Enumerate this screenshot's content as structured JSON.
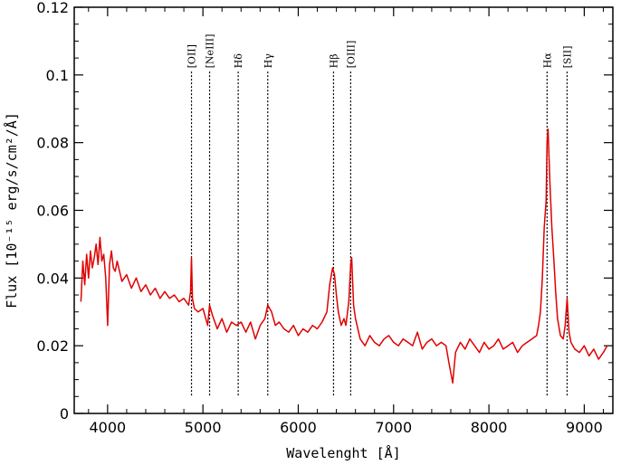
{
  "chart_data": {
    "type": "line",
    "title": "",
    "xlabel": "Wavelenght [Å]",
    "ylabel": "Flux [10⁻¹⁵ erg/s/cm²/Å]",
    "xlim": [
      3650,
      9300
    ],
    "ylim": [
      0,
      0.12
    ],
    "x_ticks": [
      "4000",
      "5000",
      "6000",
      "7000",
      "8000",
      "9000"
    ],
    "y_ticks": [
      "0",
      "0.02",
      "0.04",
      "0.06",
      "0.08",
      "0.1",
      "0.12"
    ],
    "grid": false,
    "line_color": "#e00000",
    "emission_lines": [
      {
        "label": "[OII]",
        "wavelength": 4880
      },
      {
        "label": "[NeIII]",
        "wavelength": 5070
      },
      {
        "label": "Hδ",
        "wavelength": 5370
      },
      {
        "label": "Hγ",
        "wavelength": 5680
      },
      {
        "label": "Hβ",
        "wavelength": 6370
      },
      {
        "label": "[OIII]",
        "wavelength": 6550
      },
      {
        "label": "Hα",
        "wavelength": 8610
      },
      {
        "label": "[SII]",
        "wavelength": 8820
      }
    ],
    "series": [
      {
        "x": [
          3720,
          3740,
          3760,
          3780,
          3800,
          3820,
          3840,
          3860,
          3880,
          3900,
          3920,
          3940,
          3960,
          3980,
          4000,
          4020,
          4040,
          4060,
          4080,
          4100,
          4150,
          4200,
          4250,
          4300,
          4350,
          4400,
          4450,
          4500,
          4550,
          4600,
          4650,
          4700,
          4750,
          4800,
          4850,
          4870,
          4880,
          4890,
          4910,
          4950,
          5000,
          5050,
          5070,
          5100,
          5150,
          5200,
          5250,
          5300,
          5350,
          5400,
          5450,
          5500,
          5550,
          5600,
          5650,
          5680,
          5720,
          5760,
          5800,
          5850,
          5900,
          5950,
          6000,
          6050,
          6100,
          6150,
          6200,
          6250,
          6300,
          6330,
          6360,
          6380,
          6400,
          6420,
          6450,
          6480,
          6500,
          6530,
          6550,
          6560,
          6580,
          6600,
          6650,
          6700,
          6750,
          6800,
          6850,
          6900,
          6950,
          7000,
          7050,
          7100,
          7150,
          7200,
          7250,
          7300,
          7350,
          7400,
          7450,
          7500,
          7550,
          7580,
          7600,
          7620,
          7650,
          7700,
          7750,
          7800,
          7850,
          7900,
          7950,
          8000,
          8050,
          8100,
          8150,
          8200,
          8250,
          8300,
          8350,
          8400,
          8450,
          8500,
          8520,
          8540,
          8560,
          8580,
          8600,
          8610,
          8620,
          8640,
          8660,
          8680,
          8700,
          8720,
          8750,
          8780,
          8800,
          8820,
          8840,
          8860,
          8900,
          8950,
          9000,
          9050,
          9100,
          9150,
          9200,
          9240
        ],
        "y": [
          0.033,
          0.045,
          0.038,
          0.047,
          0.04,
          0.048,
          0.043,
          0.046,
          0.05,
          0.044,
          0.052,
          0.045,
          0.047,
          0.04,
          0.026,
          0.044,
          0.048,
          0.043,
          0.042,
          0.045,
          0.039,
          0.041,
          0.037,
          0.04,
          0.036,
          0.038,
          0.035,
          0.037,
          0.034,
          0.036,
          0.034,
          0.035,
          0.033,
          0.034,
          0.032,
          0.036,
          0.046,
          0.034,
          0.031,
          0.03,
          0.031,
          0.026,
          0.032,
          0.029,
          0.025,
          0.028,
          0.024,
          0.027,
          0.026,
          0.027,
          0.024,
          0.027,
          0.022,
          0.026,
          0.028,
          0.032,
          0.03,
          0.026,
          0.027,
          0.025,
          0.024,
          0.026,
          0.023,
          0.025,
          0.024,
          0.026,
          0.025,
          0.027,
          0.03,
          0.038,
          0.043,
          0.041,
          0.035,
          0.03,
          0.026,
          0.028,
          0.026,
          0.033,
          0.044,
          0.046,
          0.032,
          0.028,
          0.022,
          0.02,
          0.023,
          0.021,
          0.02,
          0.022,
          0.023,
          0.021,
          0.02,
          0.022,
          0.021,
          0.02,
          0.024,
          0.019,
          0.021,
          0.022,
          0.02,
          0.021,
          0.02,
          0.015,
          0.012,
          0.009,
          0.018,
          0.021,
          0.019,
          0.022,
          0.02,
          0.018,
          0.021,
          0.019,
          0.02,
          0.022,
          0.019,
          0.02,
          0.021,
          0.018,
          0.02,
          0.021,
          0.022,
          0.023,
          0.026,
          0.03,
          0.04,
          0.055,
          0.063,
          0.08,
          0.084,
          0.068,
          0.055,
          0.046,
          0.036,
          0.028,
          0.023,
          0.022,
          0.026,
          0.034,
          0.024,
          0.021,
          0.019,
          0.018,
          0.02,
          0.017,
          0.019,
          0.016,
          0.018,
          0.02
        ]
      }
    ]
  }
}
